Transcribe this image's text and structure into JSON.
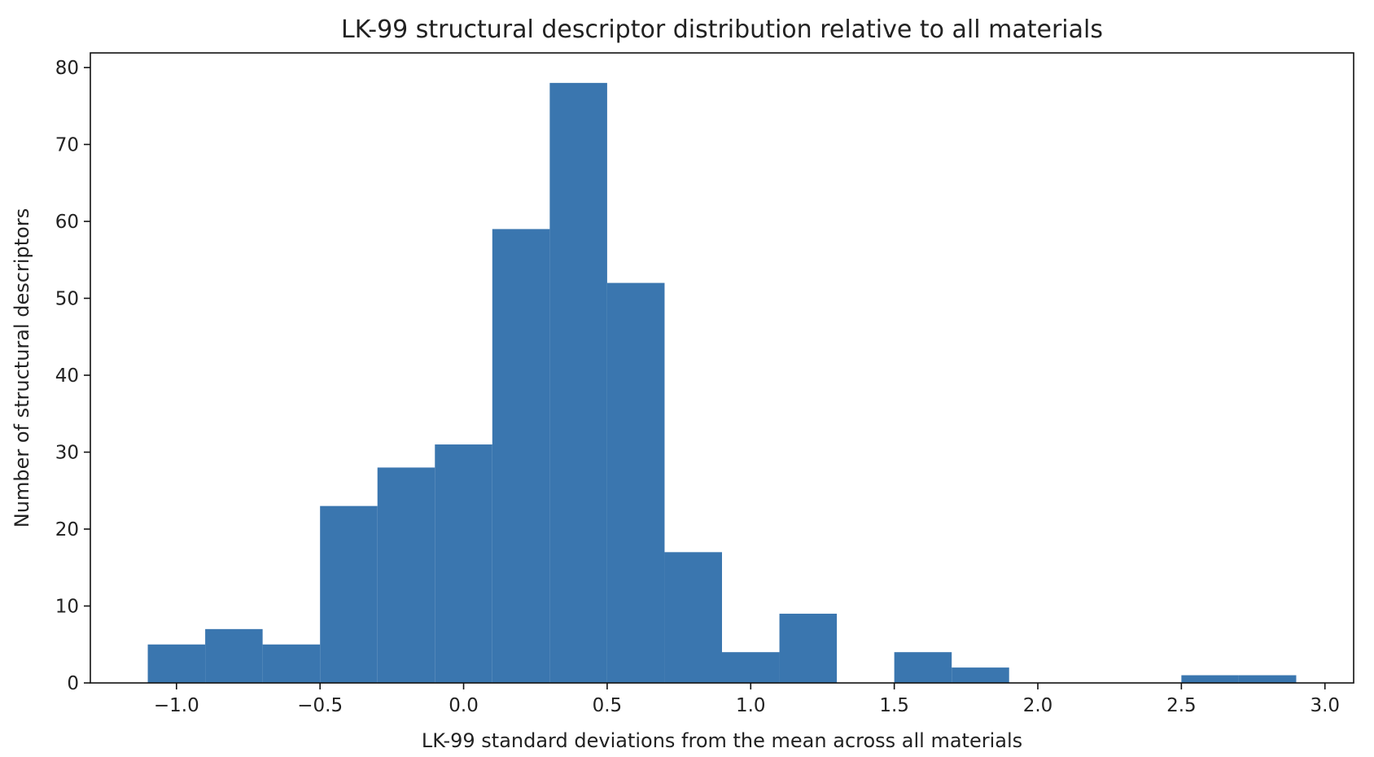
{
  "chart_data": {
    "type": "bar",
    "subtype": "histogram",
    "title": "LK-99 structural descriptor distribution relative to all materials",
    "xlabel": "LK-99 standard deviations from the mean across all materials",
    "ylabel": "Number of structural descriptors",
    "bin_edges": [
      -1.1,
      -0.9,
      -0.7,
      -0.5,
      -0.3,
      -0.1,
      0.1,
      0.3,
      0.5,
      0.7,
      0.9,
      1.1,
      1.3,
      1.5,
      1.7,
      1.9,
      2.1,
      2.3,
      2.5,
      2.7,
      2.9
    ],
    "values": [
      5,
      7,
      5,
      23,
      28,
      31,
      59,
      78,
      52,
      17,
      4,
      9,
      0,
      4,
      2,
      0,
      0,
      0,
      1,
      1
    ],
    "xlim": [
      -1.3,
      3.1
    ],
    "ylim": [
      0,
      81.9
    ],
    "xticks": [
      -1.0,
      -0.5,
      0.0,
      0.5,
      1.0,
      1.5,
      2.0,
      2.5,
      3.0
    ],
    "xtick_labels": [
      "−1.0",
      "−0.5",
      "0.0",
      "0.5",
      "1.0",
      "1.5",
      "2.0",
      "2.5",
      "3.0"
    ],
    "yticks": [
      0,
      10,
      20,
      30,
      40,
      50,
      60,
      70,
      80
    ],
    "ytick_labels": [
      "0",
      "10",
      "20",
      "30",
      "40",
      "50",
      "60",
      "70",
      "80"
    ],
    "grid": false,
    "bar_color": "#3a76af"
  }
}
